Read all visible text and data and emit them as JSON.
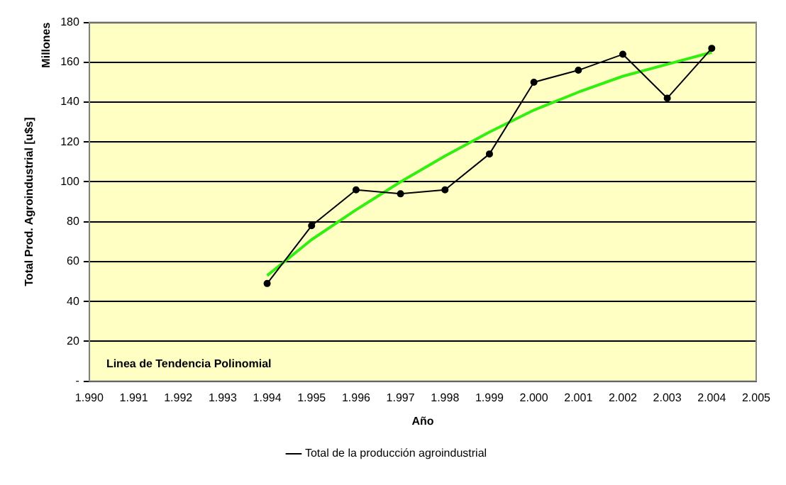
{
  "chart_data": {
    "type": "line",
    "xlabel": "Año",
    "ylabel": "Total Prod. Agroindustrial [u$s]",
    "annotations": [
      "Millones",
      "Linea de Tendencia Polinomial"
    ],
    "x": [
      1994,
      1995,
      1996,
      1997,
      1998,
      1999,
      2000,
      2001,
      2002,
      2003,
      2004
    ],
    "series": [
      {
        "name": "Total de la producción agroindustrial",
        "color": "#000000",
        "marker": "circle",
        "values": [
          49,
          78,
          96,
          94,
          96,
          114,
          150,
          156,
          164,
          142,
          167
        ]
      },
      {
        "color": "#33ee11",
        "marker": "none",
        "values": [
          53,
          71,
          86,
          100,
          113,
          125,
          136,
          145,
          153,
          159,
          165
        ]
      }
    ],
    "xlim": [
      1990,
      2005
    ],
    "xticks": [
      {
        "value": 1990,
        "label": "1.990"
      },
      {
        "value": 1991,
        "label": "1.991"
      },
      {
        "value": 1992,
        "label": "1.992"
      },
      {
        "value": 1993,
        "label": "1.993"
      },
      {
        "value": 1994,
        "label": "1.994"
      },
      {
        "value": 1995,
        "label": "1.995"
      },
      {
        "value": 1996,
        "label": "1.996"
      },
      {
        "value": 1997,
        "label": "1.997"
      },
      {
        "value": 1998,
        "label": "1.998"
      },
      {
        "value": 1999,
        "label": "1.999"
      },
      {
        "value": 2000,
        "label": "2.000"
      },
      {
        "value": 2001,
        "label": "2.001"
      },
      {
        "value": 2002,
        "label": "2.002"
      },
      {
        "value": 2003,
        "label": "2.003"
      },
      {
        "value": 2004,
        "label": "2.004"
      },
      {
        "value": 2005,
        "label": "2.005"
      }
    ],
    "ylim": [
      0,
      180
    ],
    "yticks": [
      {
        "value": 0,
        "label": "-"
      },
      20,
      40,
      60,
      80,
      100,
      120,
      140,
      160,
      180
    ],
    "grid": "y",
    "legend": "bottom",
    "line_style": "solid"
  }
}
